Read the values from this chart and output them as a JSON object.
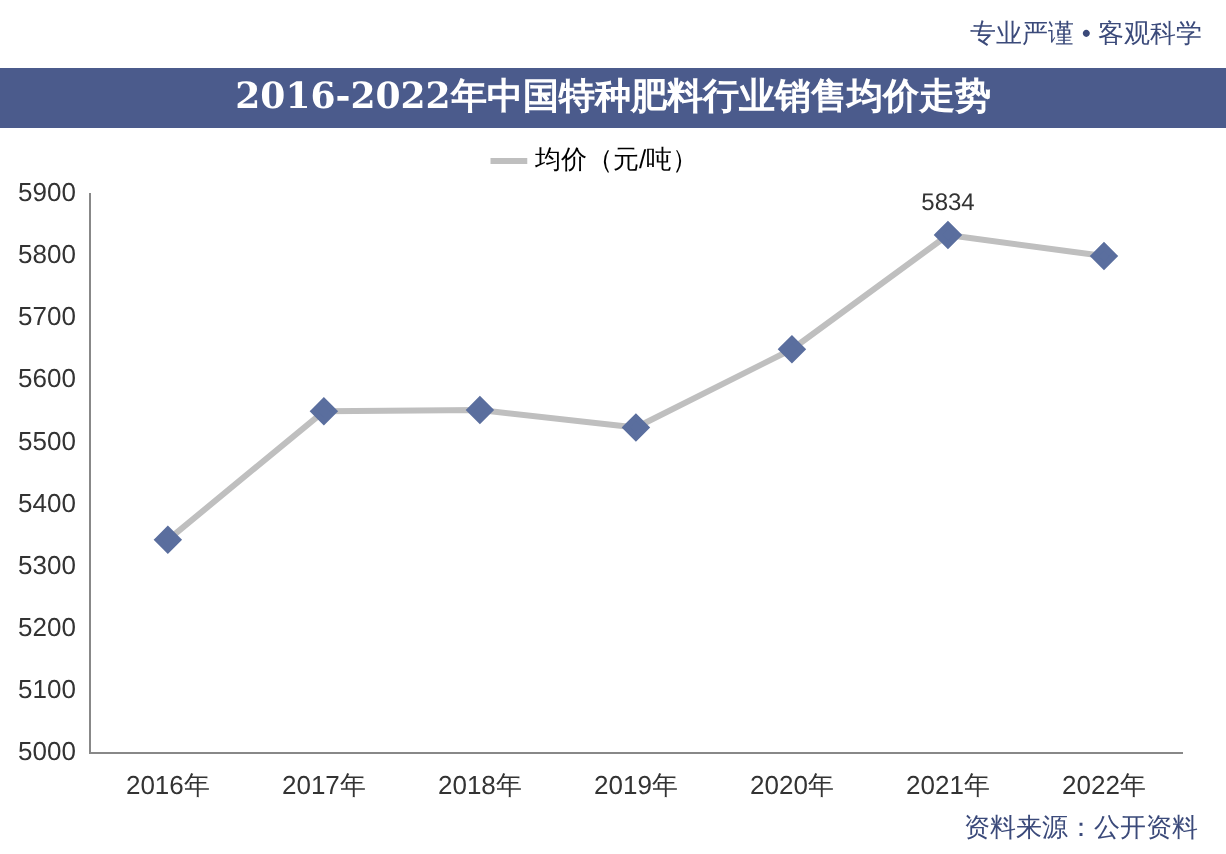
{
  "chart_data": {
    "type": "line",
    "title": "2016-2022年中国特种肥料行业销售均价走势",
    "categories": [
      "2016年",
      "2017年",
      "2018年",
      "2019年",
      "2020年",
      "2021年",
      "2022年"
    ],
    "series": [
      {
        "name": "均价（元/吨）",
        "color": "#bfbfbf",
        "colors": [
          "#5a6e9e",
          "#5a6e9e",
          "#5a6e9e",
          "#5a6e9e",
          "#5a6e9e",
          "#5a6e9e",
          "#5a6e9e"
        ],
        "values": [
          5343,
          5550,
          5552,
          5524,
          5650,
          5834,
          5800
        ],
        "value_labels": [
          null,
          null,
          null,
          null,
          null,
          "5834",
          null
        ]
      }
    ],
    "ylim": [
      5000,
      5900
    ],
    "yticks": [
      5000,
      5100,
      5200,
      5300,
      5400,
      5500,
      5600,
      5700,
      5800,
      5900
    ],
    "marker": "diamond",
    "legend": "top",
    "grid": false,
    "annotations": [
      "专业严谨 • 客观科学",
      "资料来源：公开资料"
    ]
  }
}
